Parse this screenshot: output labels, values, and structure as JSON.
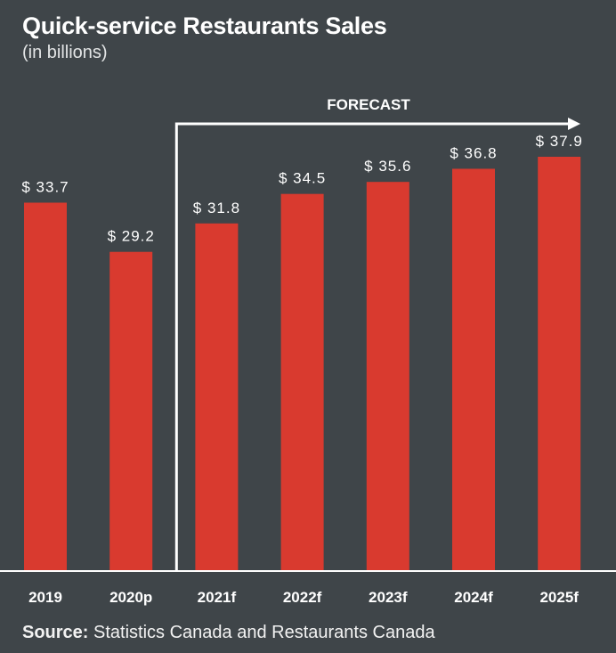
{
  "colors": {
    "background": "#3f4549",
    "bar": "#d93a2f",
    "text": "#ffffff"
  },
  "chart_data": {
    "type": "bar",
    "title": "Quick-service Restaurants Sales",
    "subtitle": "(in billions)",
    "categories": [
      "2019",
      "2020p",
      "2021f",
      "2022f",
      "2023f",
      "2024f",
      "2025f"
    ],
    "values": [
      33.7,
      29.2,
      31.8,
      34.5,
      35.6,
      36.8,
      37.9
    ],
    "data_labels": [
      "$ 33.7",
      "$ 29.2",
      "$ 31.8",
      "$ 34.5",
      "$ 35.6",
      "$ 36.8",
      "$ 37.9"
    ],
    "forecast_label": "FORECAST",
    "forecast_start_category": "2021f",
    "ylim": [
      0,
      40
    ],
    "grid": false,
    "legend": "none"
  },
  "source": {
    "label": "Source:",
    "text": " Statistics Canada and Restaurants Canada"
  }
}
